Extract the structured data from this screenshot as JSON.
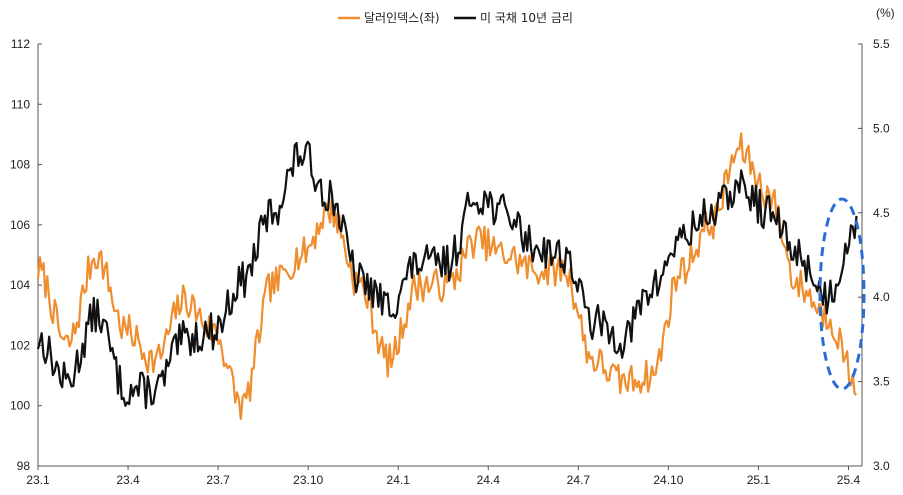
{
  "chart_data": {
    "type": "line",
    "title": "",
    "legend_position": "top-center",
    "grid": false,
    "x_tick_labels": [
      "23.1",
      "23.4",
      "23.7",
      "23.10",
      "24.1",
      "24.4",
      "24.7",
      "24.10",
      "25.1",
      "25.4"
    ],
    "left_axis": {
      "ylim": [
        98,
        112
      ],
      "ticks": [
        98,
        100,
        102,
        104,
        106,
        108,
        110,
        112
      ],
      "unit": ""
    },
    "right_axis": {
      "ylim": [
        3.0,
        5.5
      ],
      "ticks": [
        "3.0",
        "3.5",
        "4.0",
        "4.5",
        "5.0",
        "5.5"
      ],
      "unit": "(%)"
    },
    "series": [
      {
        "name": "달러인덱스(좌)",
        "axis": "left",
        "color": "#EE8E2F",
        "x": [
          "23.1",
          "23.2",
          "23.3",
          "23.4",
          "23.5",
          "23.6",
          "23.7",
          "23.8",
          "23.9",
          "23.10",
          "23.11",
          "23.12",
          "24.1",
          "24.2",
          "24.3",
          "24.4",
          "24.5",
          "24.6",
          "24.7",
          "24.8",
          "24.9",
          "24.10",
          "24.11",
          "24.12",
          "25.1",
          "25.2",
          "25.3",
          "25.4",
          "25.4b"
        ],
        "values": [
          104.5,
          102.0,
          105.0,
          102.5,
          101.5,
          103.5,
          102.5,
          100.0,
          104.0,
          105.0,
          106.5,
          104.0,
          101.5,
          104.0,
          104.0,
          105.5,
          105.0,
          104.5,
          104.5,
          101.5,
          100.8,
          101.0,
          104.5,
          106.0,
          108.5,
          107.0,
          104.0,
          103.0,
          100.8
        ]
      },
      {
        "name": "미 국채 10년 금리",
        "axis": "right",
        "color": "#111111",
        "x": [
          "23.1",
          "23.2",
          "23.3",
          "23.4",
          "23.5",
          "23.6",
          "23.7",
          "23.8",
          "23.9",
          "23.10",
          "23.11",
          "23.12",
          "24.1",
          "24.2",
          "24.3",
          "24.4",
          "24.5",
          "24.6",
          "24.7",
          "24.8",
          "24.9",
          "24.10",
          "24.11",
          "24.12",
          "25.1",
          "25.2",
          "25.3",
          "25.4",
          "25.4b"
        ],
        "values": [
          3.75,
          3.5,
          3.9,
          3.45,
          3.45,
          3.75,
          3.8,
          4.1,
          4.5,
          4.85,
          4.6,
          4.1,
          3.95,
          4.2,
          4.2,
          4.6,
          4.5,
          4.3,
          4.25,
          3.85,
          3.75,
          4.05,
          4.35,
          4.5,
          4.65,
          4.5,
          4.25,
          4.0,
          4.45
        ]
      }
    ],
    "annotation": "dashed-blue-ellipse-around-latest-data"
  }
}
